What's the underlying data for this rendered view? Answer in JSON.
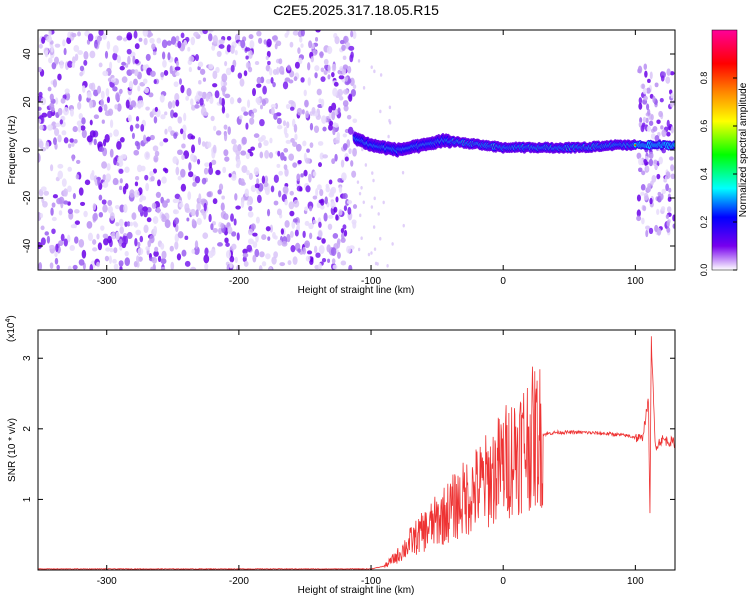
{
  "title": "C2E5.2025.317.18.05.R15",
  "chart_data": [
    {
      "type": "heatmap",
      "xlabel": "Height of straight line (km)",
      "ylabel": "Frequency (Hz)",
      "xlim": [
        -352,
        130
      ],
      "ylim": [
        -50,
        50
      ],
      "xticks": [
        -300,
        -200,
        -100,
        0,
        100
      ],
      "xtick_labels": [
        "-300",
        "-200",
        "-100",
        "0",
        "100"
      ],
      "yticks": [
        -40,
        -20,
        0,
        20,
        40
      ],
      "ytick_labels": [
        "-40",
        "-20",
        "0",
        "20",
        "40"
      ],
      "colorbar": {
        "label": "Normalized spectral amplitude",
        "range": [
          0.0,
          1.0
        ],
        "ticks": [
          0.0,
          0.2,
          0.4,
          0.6,
          0.8
        ],
        "tick_labels": [
          "0.0",
          "0.2",
          "0.4",
          "0.6",
          "0.8"
        ],
        "colors": [
          "#ffffff",
          "#7700ee",
          "#0000ff",
          "#00ffff",
          "#00ff00",
          "#ffff00",
          "#ff8800",
          "#ff0000",
          "#ff0099"
        ]
      },
      "regions": [
        {
          "x": [
            -352,
            -112
          ],
          "description": "broadband noise, amplitude ~0.1-0.2"
        },
        {
          "x": [
            -112,
            100
          ],
          "ridge_freq": [
            [
              -112,
              5
            ],
            [
              -100,
              2
            ],
            [
              -80,
              0
            ],
            [
              -60,
              2
            ],
            [
              -45,
              4
            ],
            [
              -30,
              3
            ],
            [
              -15,
              2
            ],
            [
              0,
              1
            ],
            [
              20,
              1
            ],
            [
              60,
              1
            ],
            [
              80,
              2
            ],
            [
              100,
              2
            ]
          ]
        },
        {
          "x": [
            102,
            130
          ],
          "description": "noise band with ridge near 2 Hz"
        }
      ]
    },
    {
      "type": "line",
      "xlabel": "Height of straight line (km)",
      "ylabel": "SNR (10 * v/v)",
      "multiplier_label": "(x10",
      "multiplier_exp": "4",
      "xlim": [
        -352,
        130
      ],
      "ylim": [
        0,
        3.4
      ],
      "xticks": [
        -300,
        -200,
        -100,
        0,
        100
      ],
      "xtick_labels": [
        "-300",
        "-200",
        "-100",
        "0",
        "100"
      ],
      "yticks": [
        1,
        2,
        3
      ],
      "ytick_labels": [
        "1",
        "2",
        "3"
      ],
      "color": "#ee3333",
      "x": [
        -352,
        -300,
        -200,
        -100,
        -90,
        -80,
        -70,
        -60,
        -50,
        -40,
        -30,
        -20,
        -10,
        0,
        10,
        20,
        30,
        40,
        60,
        80,
        95,
        100,
        105,
        110,
        111,
        112,
        115,
        120,
        130
      ],
      "y": [
        0.01,
        0.01,
        0.01,
        0.01,
        0.05,
        0.2,
        0.4,
        0.55,
        0.7,
        0.85,
        1.0,
        1.15,
        1.3,
        1.5,
        1.7,
        1.85,
        1.92,
        1.95,
        1.95,
        1.93,
        1.9,
        1.88,
        1.85,
        2.4,
        0.6,
        3.3,
        1.75,
        1.85,
        1.8
      ]
    }
  ]
}
